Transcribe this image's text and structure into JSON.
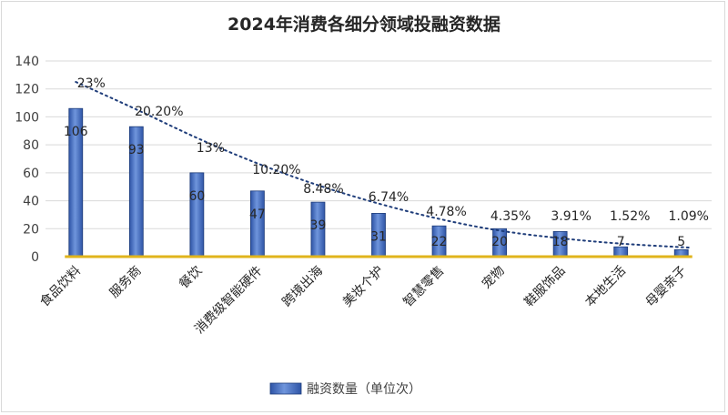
{
  "chart_data": {
    "type": "bar",
    "title": "2024年消费各细分领域投融资数据",
    "categories": [
      "食品饮料",
      "服务商",
      "餐饮",
      "消费级智能硬件",
      "跨境出海",
      "美妆个护",
      "智慧零售",
      "宠物",
      "鞋服饰品",
      "本地生活",
      "母婴亲子"
    ],
    "series": [
      {
        "name": "融资数量（单位次）",
        "values": [
          106,
          93,
          60,
          47,
          39,
          31,
          22,
          20,
          18,
          7,
          5
        ],
        "color": "#4472c4"
      }
    ],
    "percent_labels": [
      "23%",
      "20.20%",
      "13%",
      "10.20%",
      "8.48%",
      "6.74%",
      "4.78%",
      "4.35%",
      "3.91%",
      "1.52%",
      "1.09%"
    ],
    "trendline": {
      "style": "dotted",
      "color": "#1f3d7a"
    },
    "baseline_color": "#e0b41c",
    "y_ticks": [
      "0",
      "20",
      "40",
      "60",
      "80",
      "100",
      "120",
      "140"
    ],
    "ylim": [
      0,
      140
    ],
    "grid": true,
    "legend": {
      "position": "bottom"
    }
  }
}
